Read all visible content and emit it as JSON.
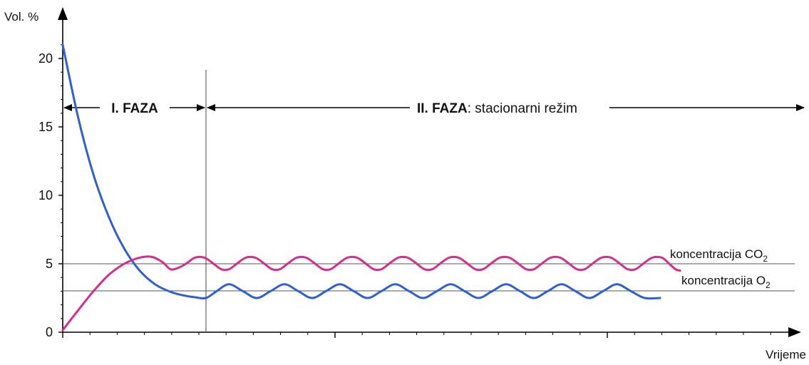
{
  "chart_data": {
    "type": "line",
    "ylabel": "Vol. %",
    "xlabel": "Vrijeme",
    "ylim": [
      0,
      22
    ],
    "yticks": [
      "0",
      "5",
      "10",
      "15",
      "20"
    ],
    "phases": [
      {
        "label": "I. FAZA",
        "suffix": ""
      },
      {
        "label": "II. FAZA",
        "suffix": ": stacionarni režim"
      }
    ],
    "reference_lines": [
      {
        "name": "koncentracija CO",
        "sub": "2",
        "y": 5
      },
      {
        "name": "koncentracija O",
        "sub": "2",
        "y": 3
      }
    ],
    "series": [
      {
        "name": "O2",
        "color": "#2f5fd3",
        "points": [
          [
            0,
            21
          ],
          [
            1,
            15.7
          ],
          [
            2,
            11.5
          ],
          [
            3,
            8.4
          ],
          [
            4,
            6.1
          ],
          [
            5,
            4.5
          ],
          [
            6,
            3.5
          ],
          [
            7,
            2.95
          ],
          [
            7.8,
            2.7
          ],
          [
            8.6,
            2.55
          ],
          [
            9.3,
            2.5
          ],
          [
            10,
            3.0
          ],
          [
            10.8,
            3.5
          ],
          [
            11.7,
            3.0
          ],
          [
            12.6,
            2.5
          ],
          [
            13.5,
            3.0
          ],
          [
            14.4,
            3.5
          ],
          [
            15.3,
            3.0
          ],
          [
            16.2,
            2.5
          ],
          [
            17.1,
            3.0
          ],
          [
            18.0,
            3.5
          ],
          [
            18.9,
            3.0
          ],
          [
            19.8,
            2.5
          ],
          [
            20.7,
            3.0
          ],
          [
            21.6,
            3.5
          ],
          [
            22.5,
            3.0
          ],
          [
            23.4,
            2.5
          ],
          [
            24.3,
            3.0
          ],
          [
            25.2,
            3.5
          ],
          [
            26.1,
            3.0
          ],
          [
            27.0,
            2.5
          ],
          [
            27.9,
            3.0
          ],
          [
            28.8,
            3.5
          ],
          [
            29.7,
            3.0
          ],
          [
            30.6,
            2.5
          ],
          [
            31.5,
            3.0
          ],
          [
            32.4,
            3.5
          ],
          [
            33.3,
            3.0
          ],
          [
            34.2,
            2.5
          ],
          [
            35.1,
            3.0
          ],
          [
            36.0,
            3.5
          ],
          [
            36.9,
            3.0
          ],
          [
            37.8,
            2.5
          ],
          [
            38.8,
            2.5
          ]
        ]
      },
      {
        "name": "CO2",
        "color": "#d52e8c",
        "points": [
          [
            0,
            0.15
          ],
          [
            1,
            1.6
          ],
          [
            2,
            3.0
          ],
          [
            3,
            4.2
          ],
          [
            4,
            5.0
          ],
          [
            5,
            5.45
          ],
          [
            5.8,
            5.5
          ],
          [
            6.5,
            5.1
          ],
          [
            7.0,
            4.6
          ],
          [
            7.5,
            4.7
          ],
          [
            8.0,
            5.0
          ],
          [
            8.5,
            5.4
          ],
          [
            8.9,
            5.5
          ],
          [
            9.3,
            5.4
          ],
          [
            9.8,
            5.0
          ],
          [
            10.3,
            4.6
          ],
          [
            10.8,
            4.6
          ],
          [
            11.3,
            5.0
          ],
          [
            11.8,
            5.4
          ],
          [
            12.2,
            5.5
          ],
          [
            12.6,
            5.4
          ],
          [
            13.1,
            5.0
          ],
          [
            13.6,
            4.6
          ],
          [
            14.1,
            4.6
          ],
          [
            14.6,
            5.0
          ],
          [
            15.1,
            5.4
          ],
          [
            15.5,
            5.5
          ],
          [
            15.9,
            5.4
          ],
          [
            16.4,
            5.0
          ],
          [
            16.9,
            4.6
          ],
          [
            17.4,
            4.6
          ],
          [
            17.9,
            5.0
          ],
          [
            18.4,
            5.4
          ],
          [
            18.8,
            5.5
          ],
          [
            19.2,
            5.4
          ],
          [
            19.7,
            5.0
          ],
          [
            20.2,
            4.6
          ],
          [
            20.7,
            4.6
          ],
          [
            21.2,
            5.0
          ],
          [
            21.7,
            5.4
          ],
          [
            22.1,
            5.5
          ],
          [
            22.5,
            5.4
          ],
          [
            23.0,
            5.0
          ],
          [
            23.5,
            4.6
          ],
          [
            24.0,
            4.6
          ],
          [
            24.5,
            5.0
          ],
          [
            25.0,
            5.4
          ],
          [
            25.4,
            5.5
          ],
          [
            25.8,
            5.4
          ],
          [
            26.3,
            5.0
          ],
          [
            26.8,
            4.6
          ],
          [
            27.3,
            4.6
          ],
          [
            27.8,
            5.0
          ],
          [
            28.3,
            5.4
          ],
          [
            28.7,
            5.5
          ],
          [
            29.1,
            5.4
          ],
          [
            29.6,
            5.0
          ],
          [
            30.1,
            4.6
          ],
          [
            30.6,
            4.6
          ],
          [
            31.1,
            5.0
          ],
          [
            31.6,
            5.4
          ],
          [
            32.0,
            5.5
          ],
          [
            32.4,
            5.4
          ],
          [
            32.9,
            5.0
          ],
          [
            33.4,
            4.6
          ],
          [
            33.9,
            4.6
          ],
          [
            34.4,
            5.0
          ],
          [
            34.9,
            5.4
          ],
          [
            35.3,
            5.5
          ],
          [
            35.7,
            5.4
          ],
          [
            36.2,
            5.0
          ],
          [
            36.7,
            4.6
          ],
          [
            37.2,
            4.6
          ],
          [
            37.7,
            5.0
          ],
          [
            38.2,
            5.4
          ],
          [
            38.6,
            5.5
          ],
          [
            39.0,
            5.4
          ],
          [
            39.4,
            5.0
          ],
          [
            39.8,
            4.6
          ],
          [
            40.1,
            4.5
          ]
        ]
      }
    ]
  }
}
